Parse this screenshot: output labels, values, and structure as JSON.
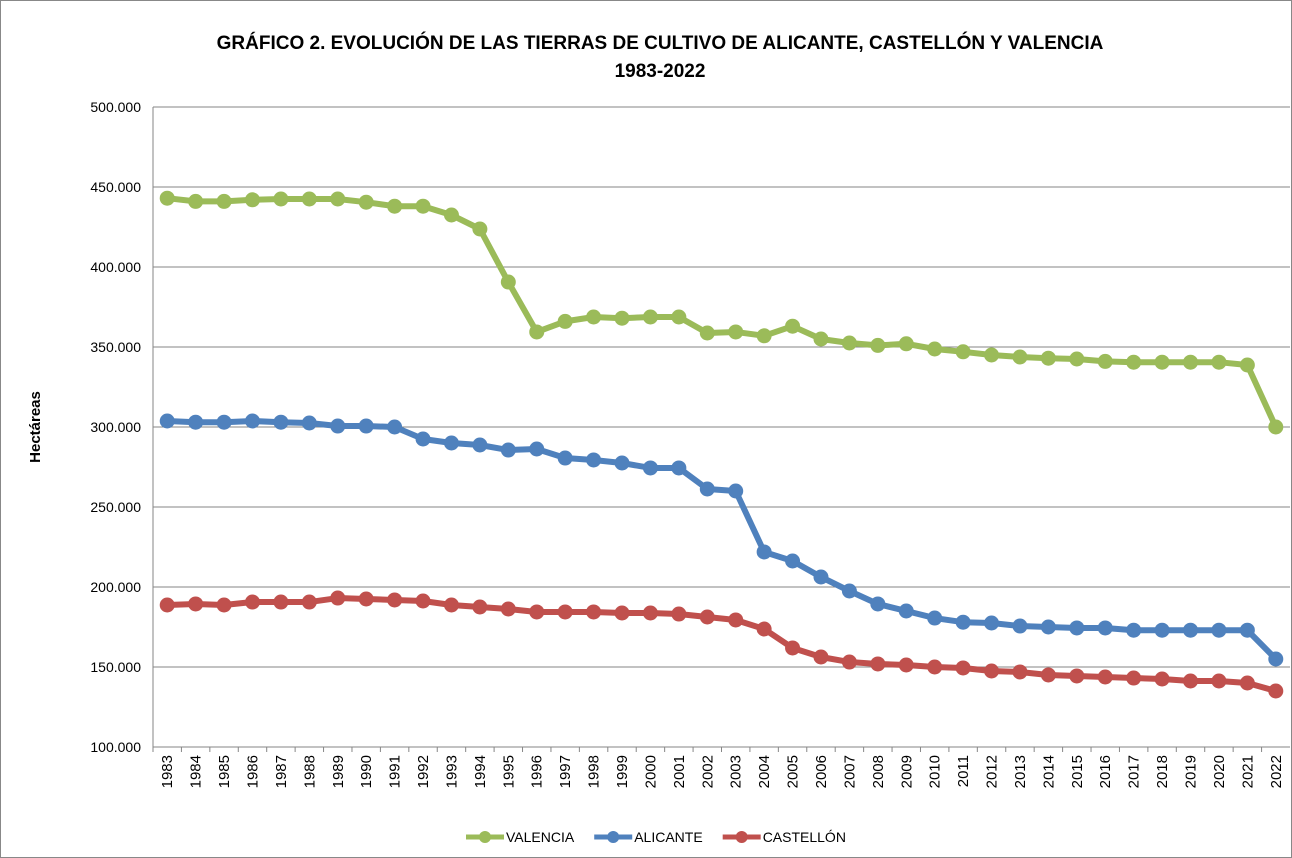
{
  "chart_data": {
    "type": "line",
    "title": "GRÁFICO 2. EVOLUCIÓN DE LAS TIERRAS DE CULTIVO DE ALICANTE, CASTELLÓN Y VALENCIA",
    "subtitle": "1983-2022",
    "y_label": "Hectáreas",
    "categories": [
      "1983",
      "1984",
      "1985",
      "1986",
      "1987",
      "1988",
      "1989",
      "1990",
      "1991",
      "1992",
      "1993",
      "1994",
      "1995",
      "1996",
      "1997",
      "1998",
      "1999",
      "2000",
      "2001",
      "2002",
      "2003",
      "2004",
      "2005",
      "2006",
      "2007",
      "2008",
      "2009",
      "2010",
      "2011",
      "2012",
      "2013",
      "2014",
      "2015",
      "2016",
      "2017",
      "2018",
      "2019",
      "2020",
      "2021",
      "2022"
    ],
    "series": [
      {
        "name": "VALENCIA",
        "color": "#9bbb59",
        "values": [
          443000,
          441000,
          441000,
          442000,
          442500,
          442500,
          442500,
          440500,
          438000,
          438000,
          432500,
          423750,
          390600,
          359400,
          366000,
          368750,
          368000,
          368750,
          368750,
          358750,
          359400,
          357000,
          363000,
          355000,
          352500,
          351000,
          352000,
          348750,
          347000,
          345000,
          343750,
          343000,
          342500,
          341000,
          340500,
          340500,
          340500,
          340500,
          338750,
          300000
        ]
      },
      {
        "name": "ALICANTE",
        "color": "#4f81bd",
        "values": [
          303750,
          303000,
          303000,
          303750,
          303000,
          302500,
          300600,
          300600,
          300000,
          292500,
          290000,
          288750,
          285600,
          286250,
          280600,
          279400,
          277500,
          274400,
          274400,
          261250,
          260000,
          221900,
          216250,
          206250,
          197500,
          189400,
          185000,
          180600,
          178000,
          177500,
          175600,
          175000,
          174400,
          174400,
          173000,
          173000,
          173000,
          173000,
          173000,
          155000
        ]
      },
      {
        "name": "CASTELLÓN",
        "color": "#c0504d",
        "values": [
          188750,
          189400,
          188750,
          190600,
          190600,
          190600,
          193100,
          192500,
          191900,
          191250,
          188750,
          187500,
          186250,
          184400,
          184400,
          184400,
          183750,
          183750,
          183100,
          181250,
          179400,
          173750,
          161900,
          156250,
          153100,
          151900,
          151250,
          150000,
          149400,
          147500,
          146900,
          145000,
          144400,
          143750,
          143100,
          142500,
          141250,
          141250,
          140000,
          135000
        ]
      }
    ],
    "ylim": [
      100000,
      500000
    ],
    "yticks": [
      {
        "value": 100000,
        "label": "100.000"
      },
      {
        "value": 150000,
        "label": "150.000"
      },
      {
        "value": 200000,
        "label": "200.000"
      },
      {
        "value": 250000,
        "label": "250.000"
      },
      {
        "value": 300000,
        "label": "300.000"
      },
      {
        "value": 350000,
        "label": "350.000"
      },
      {
        "value": 400000,
        "label": "400.000"
      },
      {
        "value": 450000,
        "label": "450.000"
      },
      {
        "value": 500000,
        "label": "500.000"
      }
    ],
    "grid": true,
    "legend": "bottom"
  }
}
